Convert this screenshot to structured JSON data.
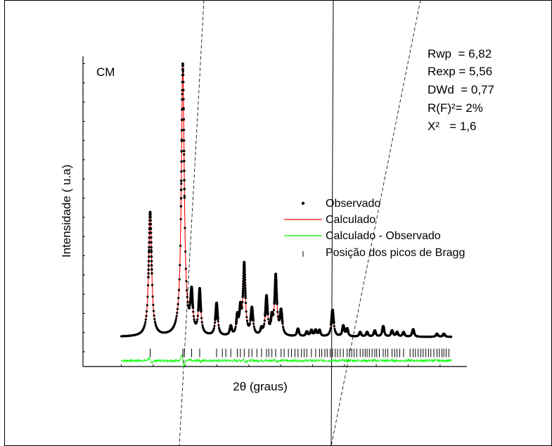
{
  "chart_data": {
    "type": "line",
    "panel_label": "CM",
    "xlabel": "2θ (graus)",
    "ylabel": "Intensidade ( u.a)",
    "xlim": [
      0,
      100
    ],
    "ylim": [
      -5,
      100
    ],
    "x_start": 10,
    "x_end": 96,
    "baseline": 5,
    "grid": false,
    "legend_position": "right-center",
    "legend": [
      {
        "label": "Observado",
        "kind": "point"
      },
      {
        "label": "Calculado",
        "kind": "line"
      },
      {
        "label": "Calculado - Observado",
        "kind": "line"
      },
      {
        "label": "Posição dos picos de Bragg",
        "kind": "tick"
      }
    ],
    "stats": [
      "Rwp  = 6,82",
      "Rexp = 5,56",
      "DWd  = 0,77",
      "R(F)²= 2%",
      "X²   = 1,6"
    ],
    "peaks": [
      {
        "x": 17.5,
        "y": 42,
        "w": 0.45
      },
      {
        "x": 26.0,
        "y": 92,
        "w": 0.45
      },
      {
        "x": 28.3,
        "y": 13,
        "w": 0.35
      },
      {
        "x": 30.4,
        "y": 15,
        "w": 0.35
      },
      {
        "x": 34.8,
        "y": 11,
        "w": 0.35
      },
      {
        "x": 38.5,
        "y": 3,
        "w": 0.3
      },
      {
        "x": 40.2,
        "y": 6,
        "w": 0.3
      },
      {
        "x": 41.0,
        "y": 8,
        "w": 0.3
      },
      {
        "x": 42.0,
        "y": 24,
        "w": 0.35
      },
      {
        "x": 44.0,
        "y": 9,
        "w": 0.35
      },
      {
        "x": 46.5,
        "y": 2,
        "w": 0.3
      },
      {
        "x": 47.8,
        "y": 13,
        "w": 0.35
      },
      {
        "x": 49.2,
        "y": 5,
        "w": 0.3
      },
      {
        "x": 50.2,
        "y": 20,
        "w": 0.35
      },
      {
        "x": 51.6,
        "y": 8,
        "w": 0.35
      },
      {
        "x": 56.0,
        "y": 2.5,
        "w": 0.3
      },
      {
        "x": 58.3,
        "y": 1.5,
        "w": 0.3
      },
      {
        "x": 59.5,
        "y": 2,
        "w": 0.3
      },
      {
        "x": 60.6,
        "y": 2,
        "w": 0.3
      },
      {
        "x": 61.6,
        "y": 2,
        "w": 0.3
      },
      {
        "x": 65.0,
        "y": 9,
        "w": 0.35
      },
      {
        "x": 67.8,
        "y": 3.5,
        "w": 0.3
      },
      {
        "x": 68.8,
        "y": 2.5,
        "w": 0.3
      },
      {
        "x": 72.2,
        "y": 1.5,
        "w": 0.3
      },
      {
        "x": 74.0,
        "y": 1.5,
        "w": 0.3
      },
      {
        "x": 76.0,
        "y": 2,
        "w": 0.3
      },
      {
        "x": 78.2,
        "y": 3.5,
        "w": 0.3
      },
      {
        "x": 80.5,
        "y": 2,
        "w": 0.3
      },
      {
        "x": 81.8,
        "y": 1.5,
        "w": 0.3
      },
      {
        "x": 83.5,
        "y": 1.5,
        "w": 0.3
      },
      {
        "x": 86.0,
        "y": 2.5,
        "w": 0.3
      },
      {
        "x": 92.2,
        "y": 1,
        "w": 0.3
      },
      {
        "x": 94.0,
        "y": 1,
        "w": 0.3
      }
    ],
    "bragg_positions": [
      17.5,
      26.0,
      26.4,
      28.3,
      30.4,
      34.8,
      36.3,
      37.2,
      38.5,
      40.2,
      41.0,
      42.0,
      43.2,
      44.0,
      45.3,
      46.5,
      47.8,
      48.4,
      49.2,
      50.2,
      51.6,
      52.4,
      53.5,
      54.3,
      55.2,
      56.0,
      56.9,
      57.6,
      58.3,
      59.5,
      60.6,
      61.6,
      62.2,
      63.0,
      63.6,
      64.4,
      65.0,
      65.7,
      66.3,
      67.0,
      67.8,
      68.8,
      69.4,
      70.0,
      70.6,
      71.3,
      72.2,
      72.9,
      73.5,
      74.0,
      74.6,
      75.3,
      76.0,
      76.5,
      77.2,
      78.2,
      78.8,
      79.4,
      80.5,
      81.2,
      81.8,
      82.5,
      83.5,
      85.2,
      86.0,
      86.6,
      87.3,
      88.0,
      88.6,
      89.3,
      90.0,
      90.6,
      91.4,
      92.2,
      92.8,
      93.5,
      94.0,
      94.6,
      95.3
    ]
  }
}
